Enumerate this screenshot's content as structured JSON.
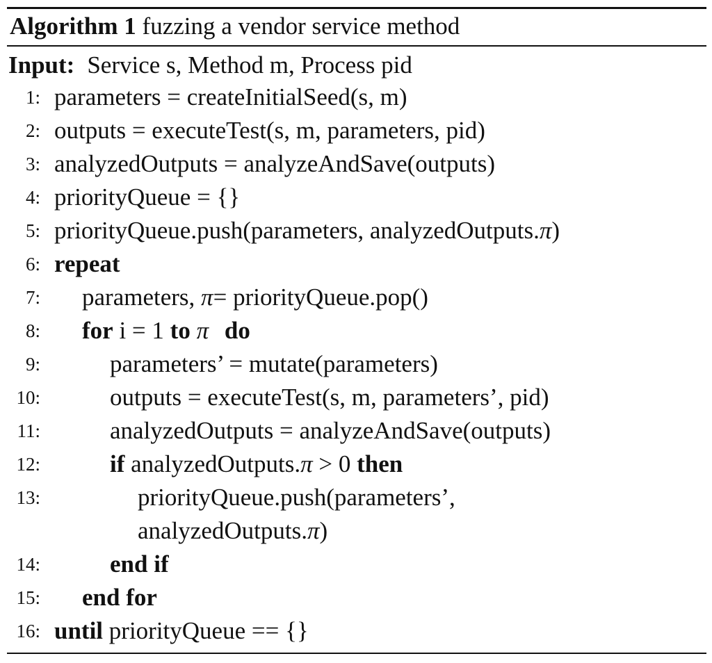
{
  "caption": {
    "label": "Algorithm 1",
    "title": "fuzzing a vendor service method"
  },
  "input": {
    "keyword": "Input:",
    "text": "Service s, Method m, Process pid"
  },
  "lines": {
    "l1": {
      "no": "1:",
      "text": "parameters = createInitialSeed(s, m)"
    },
    "l2": {
      "no": "2:",
      "text": "outputs = executeTest(s, m, parameters, pid)"
    },
    "l3": {
      "no": "3:",
      "text": "analyzedOutputs = analyzeAndSave(outputs)"
    },
    "l4": {
      "no": "4:",
      "text": "priorityQueue = {}"
    },
    "l5": {
      "no": "5:",
      "pre": "priorityQueue.push(parameters, analyzedOutputs.",
      "pi": "π",
      "post": ")"
    },
    "l6": {
      "no": "6:",
      "kw": "repeat"
    },
    "l7": {
      "no": "7:",
      "pre": "parameters, ",
      "pi": "π",
      "post": "= priorityQueue.pop()"
    },
    "l8": {
      "no": "8:",
      "kw_for": "for",
      "mid": "i = 1",
      "kw_to": "to",
      "pi": "π",
      "kw_do": "do"
    },
    "l9": {
      "no": "9:",
      "text": "parameters’ = mutate(parameters)"
    },
    "l10": {
      "no": "10:",
      "text": "outputs = executeTest(s, m, parameters’, pid)"
    },
    "l11": {
      "no": "11:",
      "text": "analyzedOutputs = analyzeAndSave(outputs)"
    },
    "l12": {
      "no": "12:",
      "kw_if": "if",
      "pre": "analyzedOutputs.",
      "pi": "π",
      "cmp": " > 0 ",
      "kw_then": "then"
    },
    "l13": {
      "no": "13:",
      "text": "priorityQueue.push(parameters’,",
      "cont_pre": "analyzedOutputs.",
      "pi": "π",
      "cont_post": ")"
    },
    "l14": {
      "no": "14:",
      "kw": "end if"
    },
    "l15": {
      "no": "15:",
      "kw": "end for"
    },
    "l16": {
      "no": "16:",
      "kw": "until",
      "text": "priorityQueue == {}"
    }
  }
}
